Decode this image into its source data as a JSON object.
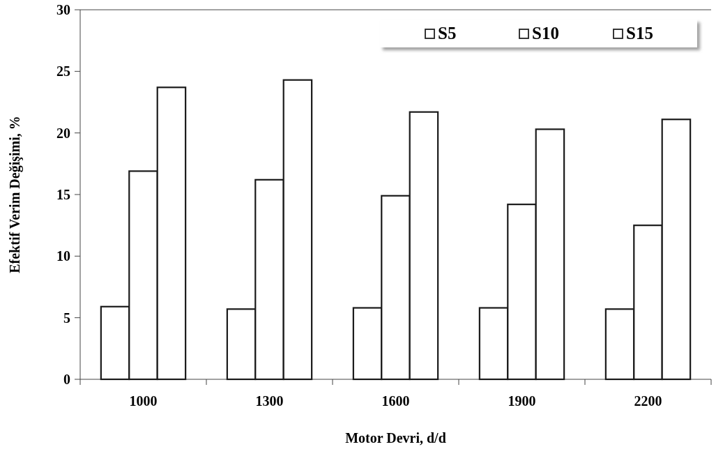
{
  "chart_data": {
    "type": "bar",
    "xlabel": "Motor Devri, d/d",
    "ylabel": "Efektif Verim Değişimi, %",
    "categories": [
      "1000",
      "1300",
      "1600",
      "1900",
      "2200"
    ],
    "series": [
      {
        "name": "S5",
        "color": "#ffffff",
        "values": [
          5.9,
          5.7,
          5.8,
          5.8,
          5.7
        ]
      },
      {
        "name": "S10",
        "color": "#ffffff",
        "values": [
          16.9,
          16.2,
          14.9,
          14.2,
          12.5
        ]
      },
      {
        "name": "S15",
        "color": "#ffffff",
        "values": [
          23.7,
          24.3,
          21.7,
          20.3,
          21.1
        ]
      }
    ],
    "ylim": [
      0,
      30
    ],
    "yticks": [
      0,
      5,
      10,
      15,
      20,
      25,
      30
    ],
    "grid": false,
    "legend": "top right"
  }
}
